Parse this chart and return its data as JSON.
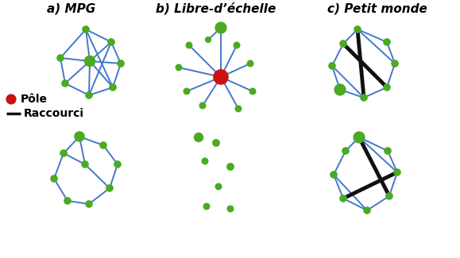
{
  "title_a": "a) MPG",
  "title_b": "b) Libre-d’échelle",
  "title_c": "c) Petit monde",
  "legend_pole": "Pôle",
  "legend_raccourci": "Raccourci",
  "node_color_green": "#4aaa20",
  "node_color_red": "#cc1111",
  "edge_color_blue": "#4477cc",
  "edge_color_black": "#111111",
  "bg_color": "#ffffff",
  "title_fontsize": 11,
  "legend_fontsize": 10,
  "fig_w": 5.79,
  "fig_h": 3.25,
  "dpi": 100
}
